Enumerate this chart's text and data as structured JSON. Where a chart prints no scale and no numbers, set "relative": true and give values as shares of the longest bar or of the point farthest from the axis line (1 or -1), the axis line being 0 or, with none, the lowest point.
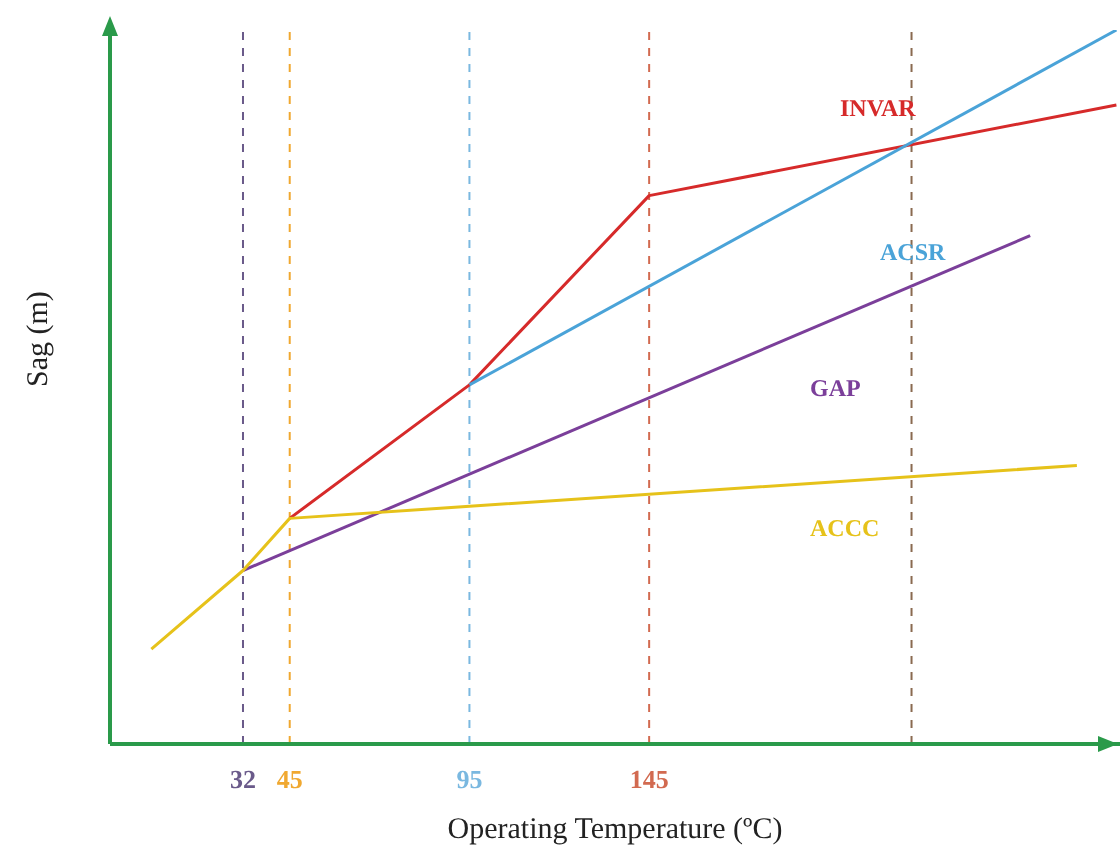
{
  "chart_data": {
    "type": "line",
    "relative": true,
    "xlabel": "Operating Temperature (ºC)",
    "ylabel": "Sag (m)",
    "xlim": [
      -5,
      276
    ],
    "xticks": [
      32,
      45,
      95,
      145
    ],
    "tick_labels": "x",
    "legend": false,
    "marker": "none",
    "line_style": "solid",
    "series": [
      {
        "name": "INVAR",
        "color": "#d62a2a",
        "x": [
          45,
          95,
          145,
          275
        ],
        "values": [
          0.316,
          0.503,
          0.768,
          0.895
        ]
      },
      {
        "name": "ACSR",
        "color": "#4aa3d8",
        "x": [
          95,
          275
        ],
        "values": [
          0.503,
          1.0
        ]
      },
      {
        "name": "GAP",
        "color": "#7b3f9a",
        "x": [
          32,
          251
        ],
        "values": [
          0.243,
          0.712
        ]
      },
      {
        "name": "ACCC",
        "color": "#e6c21a",
        "x": [
          6.5,
          32,
          45,
          264
        ],
        "values": [
          0.133,
          0.243,
          0.316,
          0.39
        ]
      }
    ],
    "ref_lines": [
      {
        "axis": "x",
        "value": 32,
        "label": null,
        "color": "#6a5a8a",
        "line_style": "dashed"
      },
      {
        "axis": "x",
        "value": 45,
        "label": null,
        "color": "#f0a830",
        "line_style": "dashed"
      },
      {
        "axis": "x",
        "value": 95,
        "label": null,
        "color": "#7ab8e0",
        "line_style": "dashed"
      },
      {
        "axis": "x",
        "value": 145,
        "label": null,
        "color": "#d26a50",
        "line_style": "dashed"
      },
      {
        "axis": "x",
        "value": 218,
        "label": null,
        "color": "#8a6a50",
        "line_style": "dashed"
      }
    ]
  }
}
